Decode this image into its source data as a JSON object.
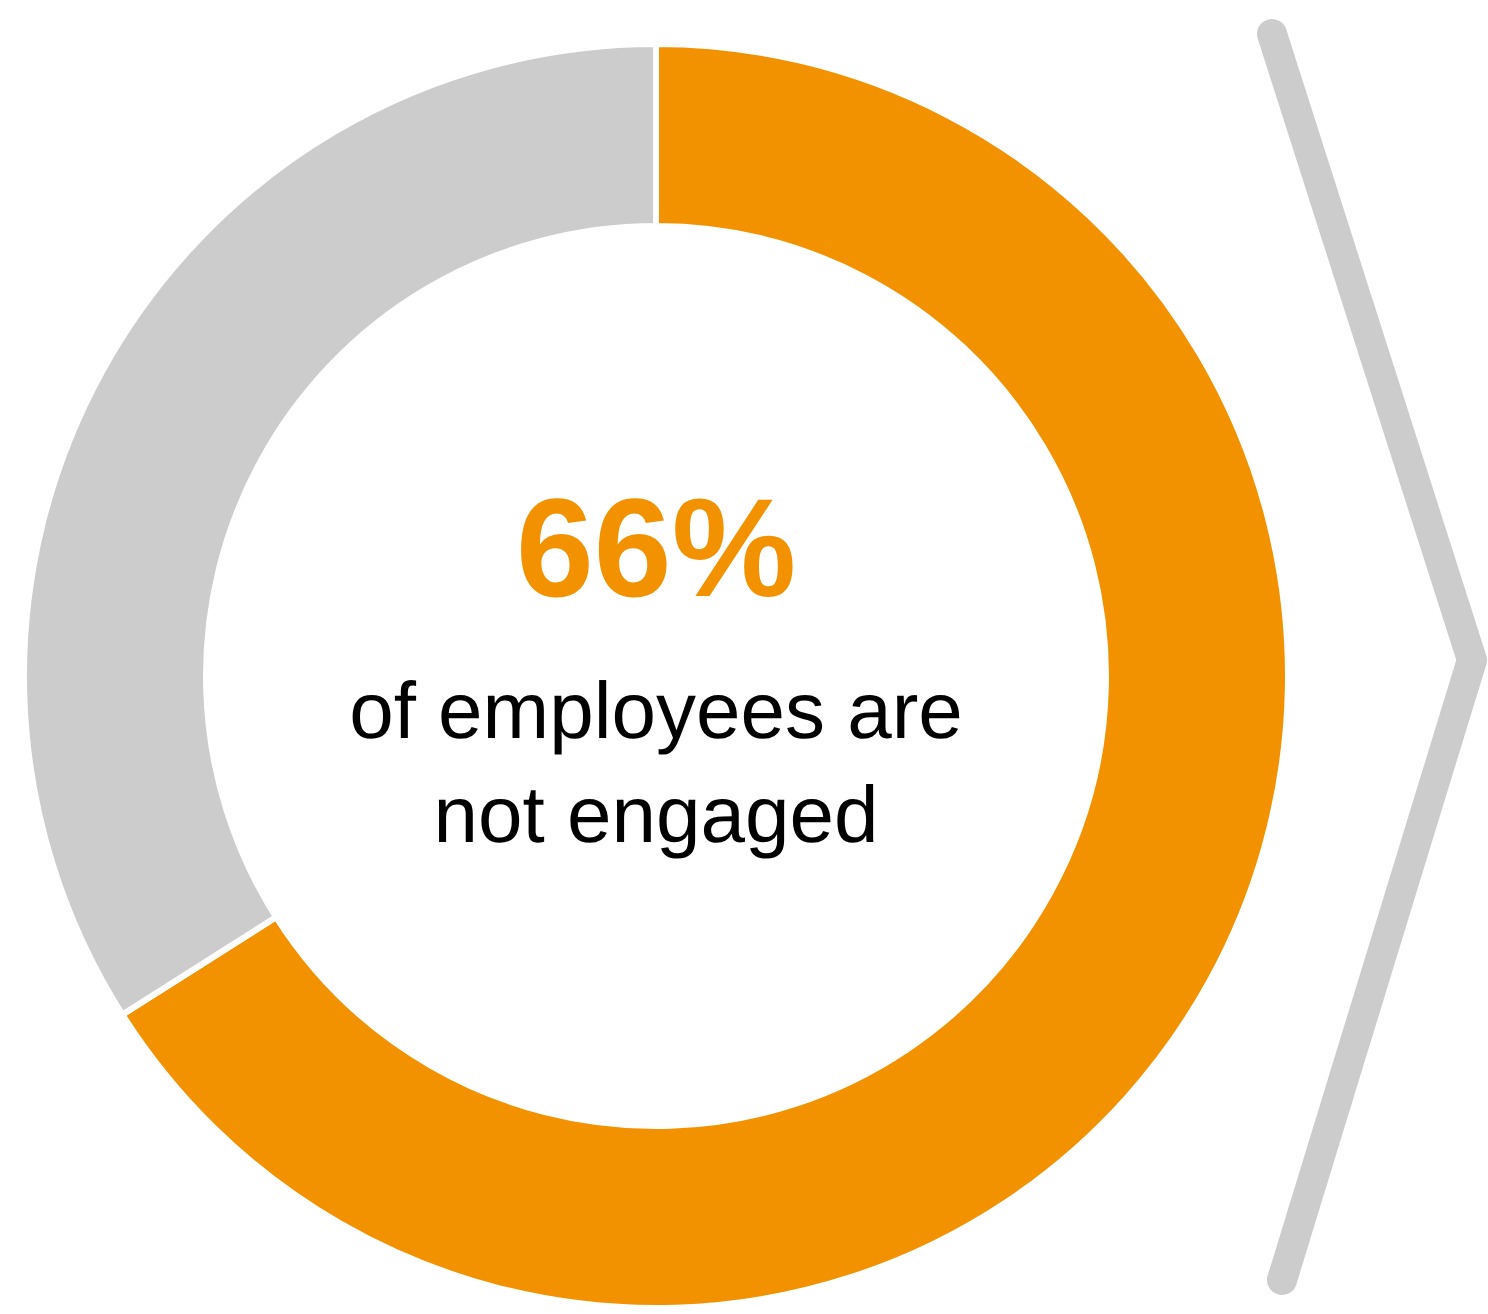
{
  "chart_data": {
    "type": "donut",
    "categories": [
      null,
      null
    ],
    "values": [
      66,
      34
    ],
    "colors": [
      "#f39200",
      "#cccccc"
    ],
    "annotations": [
      "66%",
      "of employees are not engaged"
    ]
  }
}
